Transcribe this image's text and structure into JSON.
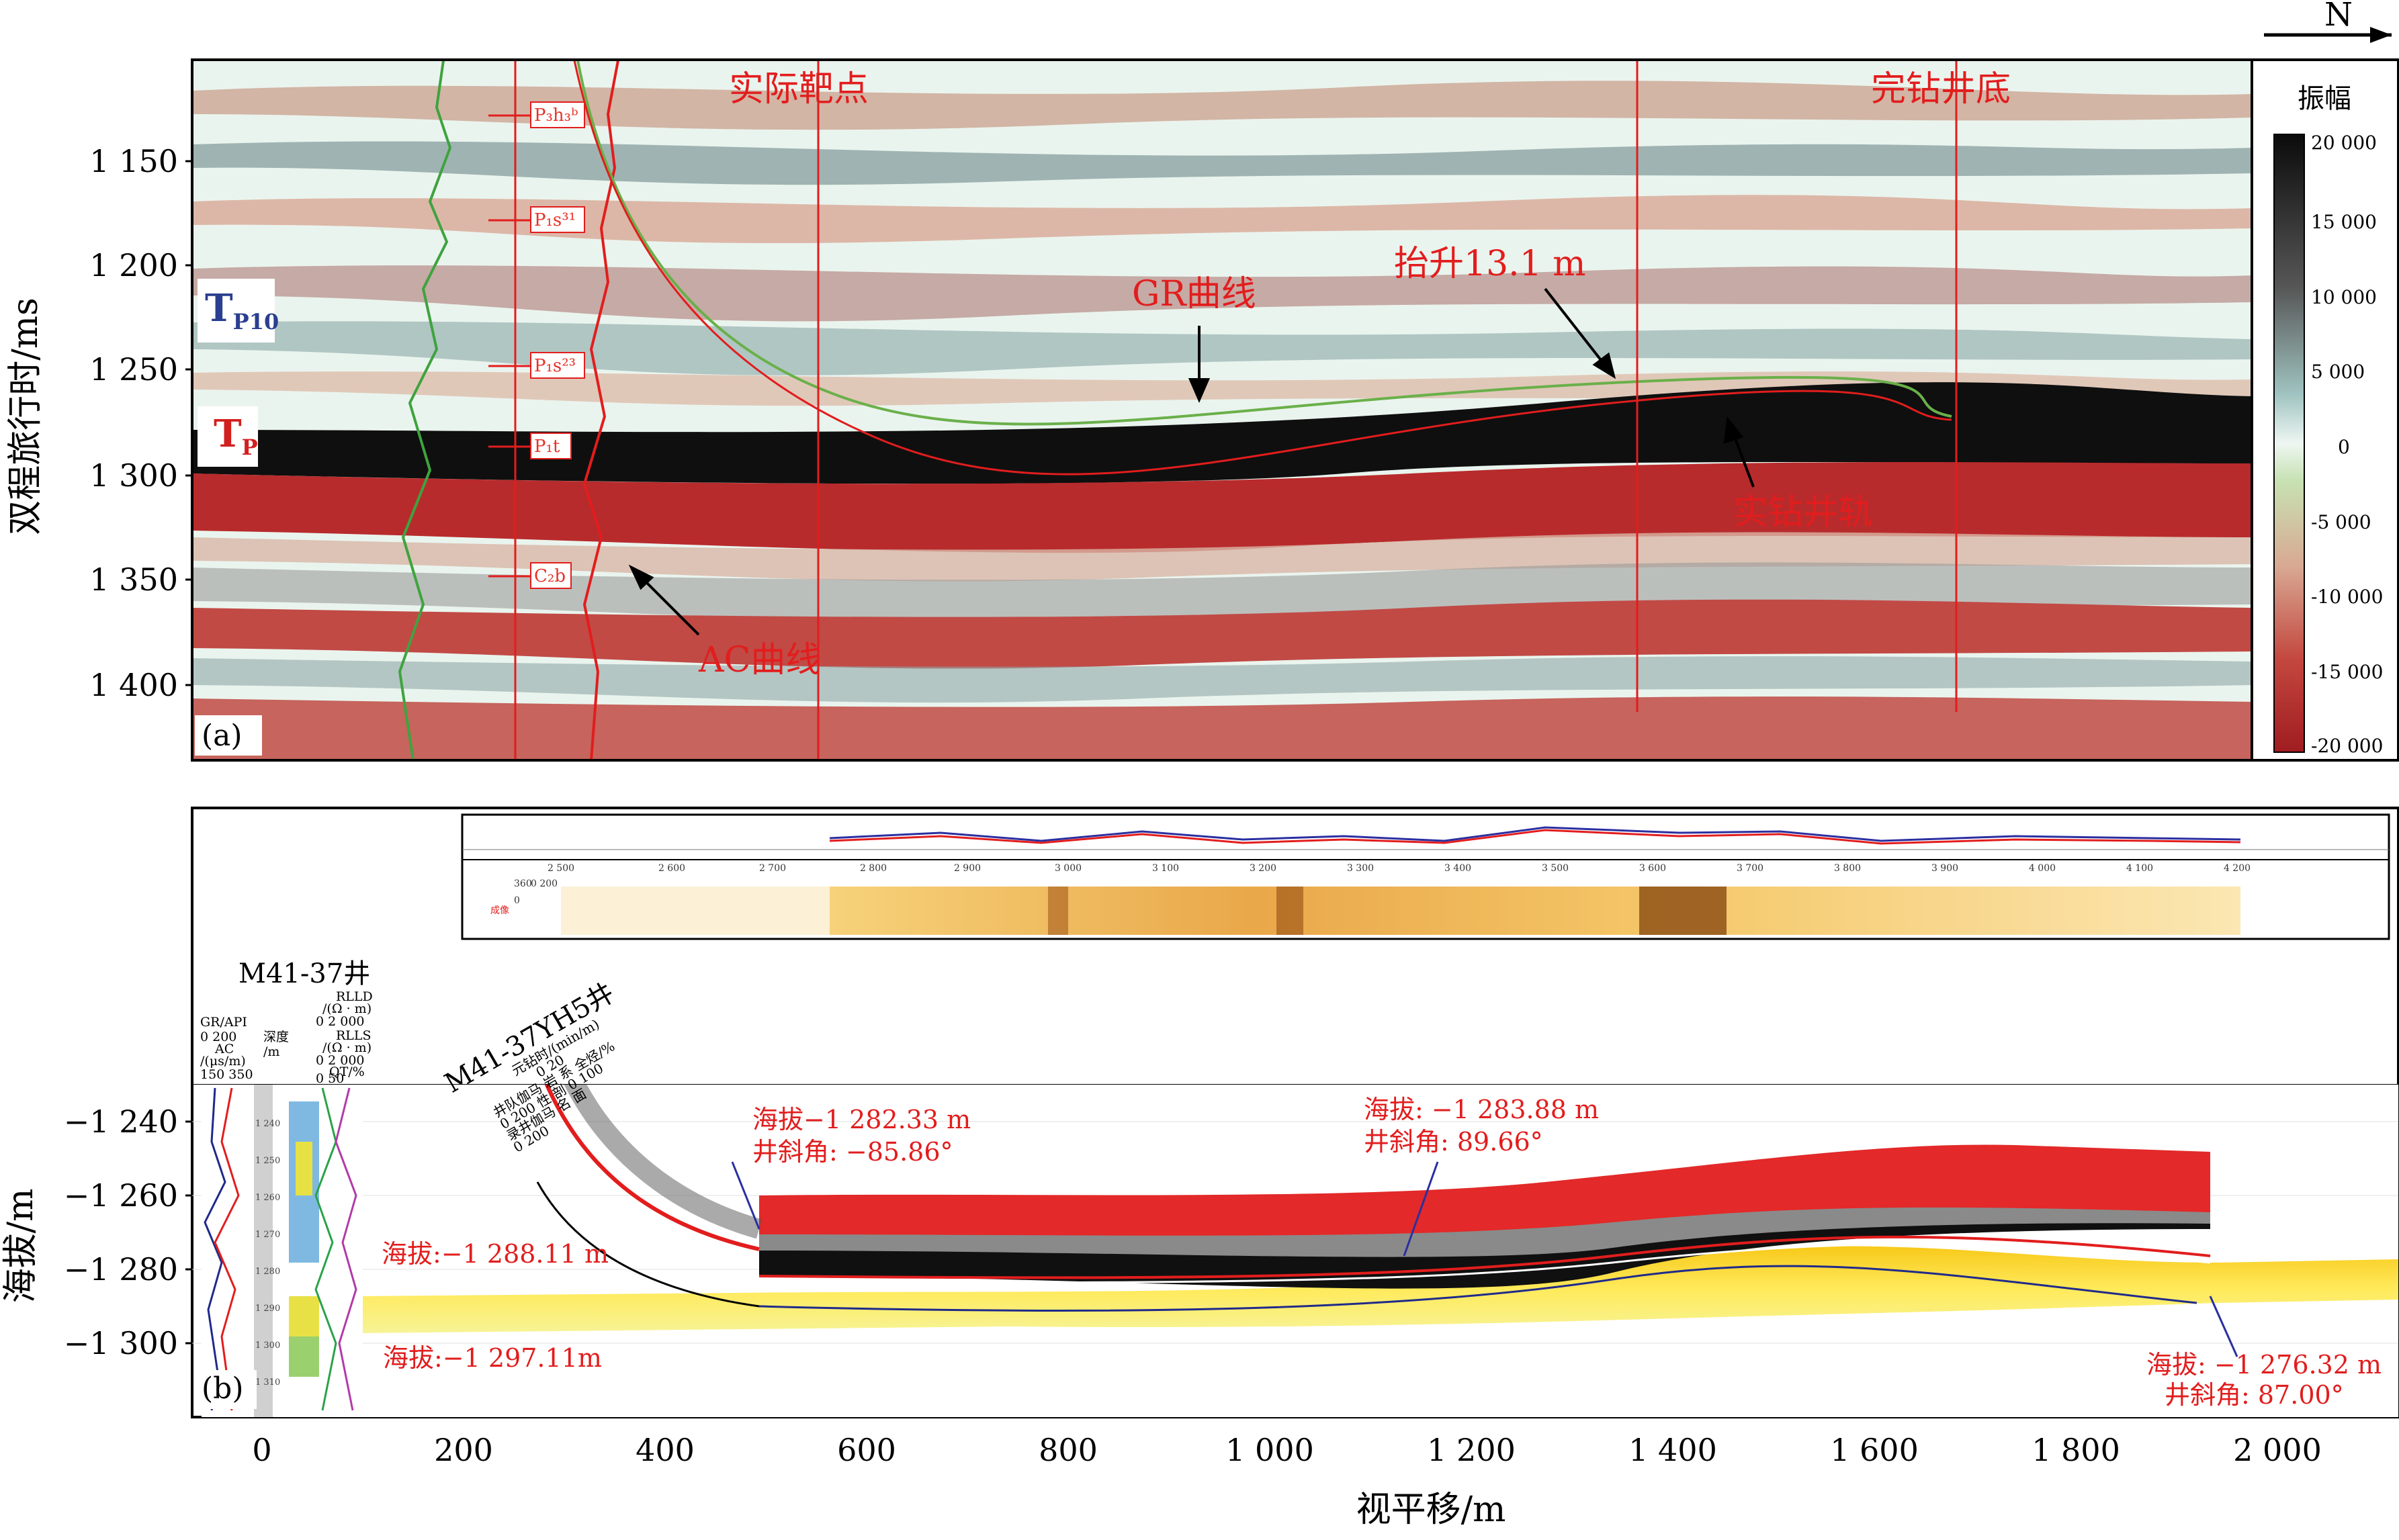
{
  "north": "N",
  "panel_a": {
    "label": "(a)",
    "ylabel": "双程旅行时/ms",
    "yticks": [
      "1 150",
      "1 200",
      "1 250",
      "1 300",
      "1 350",
      "1 400"
    ],
    "strata": [
      "P₃h₃ᵇ",
      "P₁s³¹",
      "P₁s²³",
      "P₁t",
      "C₂b"
    ],
    "tp10": {
      "main": "T",
      "sub": "P10"
    },
    "tp": {
      "main": "T",
      "sub": "P"
    },
    "annotations": {
      "target": "实际靶点",
      "bottom": "完钻井底",
      "gr": "GR曲线",
      "uplift": "抬升13.1 m",
      "track": "实钻井轨",
      "ac": "AC曲线"
    },
    "colorbar": {
      "title": "振幅",
      "ticks": [
        "20 000",
        "15 000",
        "10 000",
        "5 000",
        "0",
        "-5 000",
        "-10 000",
        "-15 000",
        "-20 000"
      ],
      "colors": [
        "#0d0d0d",
        "#4a4a4a",
        "#8a9a9a",
        "#cfe6e3",
        "#bfe0b0",
        "#d9a487",
        "#c8554a",
        "#b52f2f",
        "#a81f22"
      ]
    }
  },
  "panel_b": {
    "label": "(b)",
    "ylabel": "海拔/m",
    "yticks": [
      "−1 240",
      "−1 260",
      "−1 280",
      "−1 300"
    ],
    "xlabel": "视平移/m",
    "xticks": [
      "0",
      "200",
      "400",
      "600",
      "800",
      "1 000",
      "1 200",
      "1 400",
      "1 600",
      "1 800",
      "2 000"
    ],
    "well_vertical": {
      "name": "M41-37井",
      "headers": [
        "GR/API",
        "0    200",
        "AC",
        "/(μs/m)",
        "150   350",
        "深度",
        "/m",
        "RLLD",
        "/(Ω · m)",
        "0  2 000",
        "RLLS",
        "/(Ω · m)",
        "0  2 000",
        "QT/%",
        "0    50"
      ],
      "depth_ticks": [
        "1 240",
        "1 250",
        "1 260",
        "1 270",
        "1 280",
        "1 290",
        "1 300",
        "1 310"
      ]
    },
    "well_horizontal": {
      "name": "M41-37YH5井",
      "headers": [
        "元钻时/(min/m)",
        "0    20",
        "井队伽马 岩 系 全烃/%",
        "0  200 性 剖 0  100",
        "录井伽马 名 面",
        "0   200"
      ]
    },
    "image_log_ticks": [
      "2 500",
      "2 600",
      "2 700",
      "2 800",
      "2 900",
      "3 000",
      "3 100",
      "3 200",
      "3 300",
      "3 400",
      "3 500",
      "3 600",
      "3 700",
      "3 800",
      "3 900",
      "4 000",
      "4 100",
      "4 200"
    ],
    "image_log_side": [
      "成像",
      "0",
      "360",
      "0  200"
    ],
    "annotations": {
      "a1": "海拔:−1 288.11 m",
      "a2": "海拔:−1 297.11m",
      "a3": "海拔−1 282.33 m",
      "a4": "井斜角: −85.86°",
      "a5": "海拔: −1 283.88 m",
      "a6": "井斜角: 89.66°",
      "a7": "海拔: −1 276.32 m",
      "a8": "井斜角: 87.00°"
    }
  }
}
